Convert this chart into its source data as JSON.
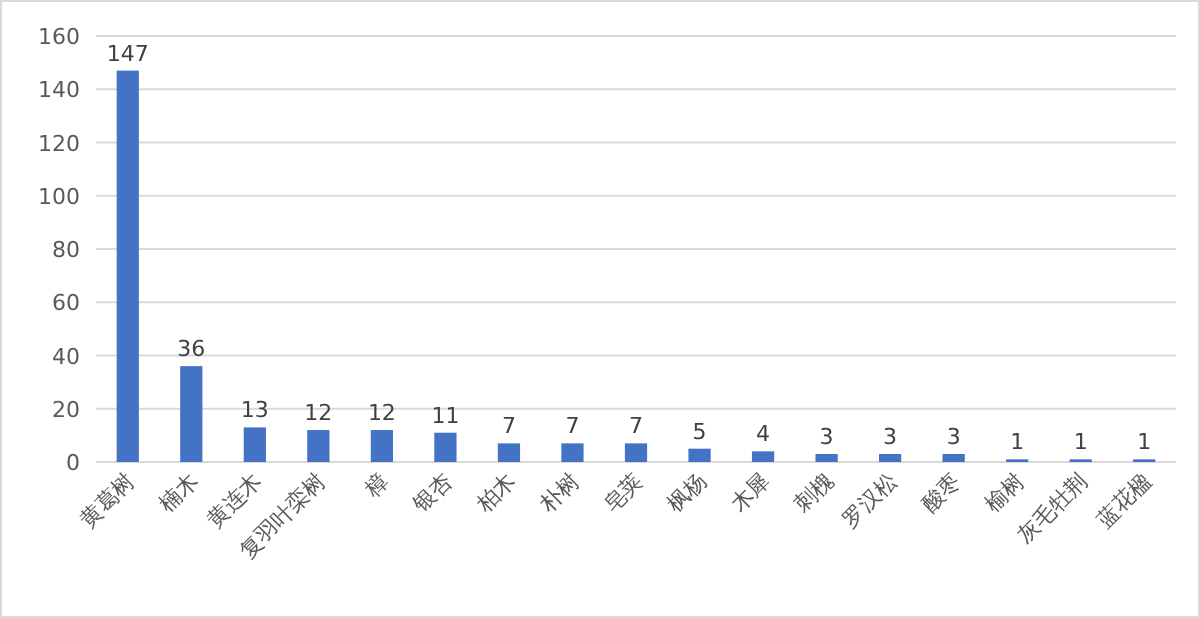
{
  "chart_data": {
    "type": "bar",
    "categories": [
      "黄葛树",
      "楠木",
      "黄连木",
      "复羽叶栾树",
      "樟",
      "银杏",
      "柏木",
      "朴树",
      "皂荚",
      "枫杨",
      "木犀",
      "刺槐",
      "罗汉松",
      "酸枣",
      "榆树",
      "灰毛牡荆",
      "蓝花楹"
    ],
    "values": [
      147,
      36,
      13,
      12,
      12,
      11,
      7,
      7,
      7,
      5,
      4,
      3,
      3,
      3,
      1,
      1,
      1
    ],
    "color": "#4472c4",
    "ylim": [
      0,
      160
    ],
    "yticks": [
      0,
      20,
      40,
      60,
      80,
      100,
      120,
      140,
      160
    ],
    "grid": "y",
    "data_labels": true
  }
}
